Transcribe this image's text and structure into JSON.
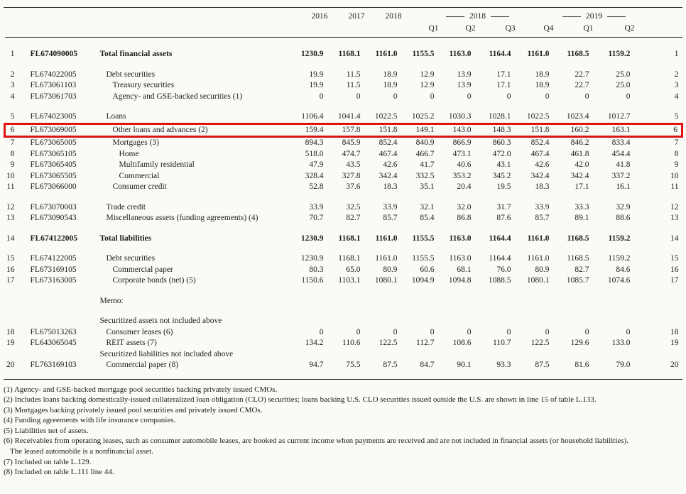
{
  "table": {
    "year_columns": [
      "2016",
      "2017",
      "2018"
    ],
    "quarter_groups": [
      {
        "label": "2018",
        "quarters": [
          "Q1",
          "Q2",
          "Q3",
          "Q4"
        ]
      },
      {
        "label": "2019",
        "quarters": [
          "Q1",
          "Q2"
        ]
      }
    ],
    "rows": [
      {
        "line": "1",
        "code": "FL674090005",
        "desc": "Total financial assets",
        "indent": 0,
        "bold": true,
        "gap": false,
        "values": [
          "1230.9",
          "1168.1",
          "1161.0",
          "1155.5",
          "1163.0",
          "1164.4",
          "1161.0",
          "1168.5",
          "1159.2"
        ]
      },
      {
        "line": "2",
        "code": "FL674022005",
        "desc": "Debt securities",
        "indent": 1,
        "gap": true,
        "values": [
          "19.9",
          "11.5",
          "18.9",
          "12.9",
          "13.9",
          "17.1",
          "18.9",
          "22.7",
          "25.0"
        ]
      },
      {
        "line": "3",
        "code": "FL673061103",
        "desc": "Treasury securities",
        "indent": 2,
        "values": [
          "19.9",
          "11.5",
          "18.9",
          "12.9",
          "13.9",
          "17.1",
          "18.9",
          "22.7",
          "25.0"
        ]
      },
      {
        "line": "4",
        "code": "FL673061703",
        "desc": "Agency- and GSE-backed securities (1)",
        "indent": 2,
        "values": [
          "0",
          "0",
          "0",
          "0",
          "0",
          "0",
          "0",
          "0",
          "0"
        ]
      },
      {
        "line": "5",
        "code": "FL674023005",
        "desc": "Loans",
        "indent": 1,
        "gap": true,
        "values": [
          "1106.4",
          "1041.4",
          "1022.5",
          "1025.2",
          "1030.3",
          "1028.1",
          "1022.5",
          "1023.4",
          "1012.7"
        ]
      },
      {
        "line": "6",
        "code": "FL673069005",
        "desc": "Other loans and advances (2)",
        "indent": 2,
        "highlight": true,
        "values": [
          "159.4",
          "157.8",
          "151.8",
          "149.1",
          "143.0",
          "148.3",
          "151.8",
          "160.2",
          "163.1"
        ]
      },
      {
        "line": "7",
        "code": "FL673065005",
        "desc": "Mortgages (3)",
        "indent": 2,
        "values": [
          "894.3",
          "845.9",
          "852.4",
          "840.9",
          "866.9",
          "860.3",
          "852.4",
          "846.2",
          "833.4"
        ]
      },
      {
        "line": "8",
        "code": "FL673065105",
        "desc": "Home",
        "indent": 3,
        "values": [
          "518.0",
          "474.7",
          "467.4",
          "466.7",
          "473.1",
          "472.0",
          "467.4",
          "461.8",
          "454.4"
        ]
      },
      {
        "line": "9",
        "code": "FL673065405",
        "desc": "Multifamily residential",
        "indent": 3,
        "values": [
          "47.9",
          "43.5",
          "42.6",
          "41.7",
          "40.6",
          "43.1",
          "42.6",
          "42.0",
          "41.8"
        ]
      },
      {
        "line": "10",
        "code": "FL673065505",
        "desc": "Commercial",
        "indent": 3,
        "values": [
          "328.4",
          "327.8",
          "342.4",
          "332.5",
          "353.2",
          "345.2",
          "342.4",
          "342.4",
          "337.2"
        ]
      },
      {
        "line": "11",
        "code": "FL673066000",
        "desc": "Consumer credit",
        "indent": 2,
        "values": [
          "52.8",
          "37.6",
          "18.3",
          "35.1",
          "20.4",
          "19.5",
          "18.3",
          "17.1",
          "16.1"
        ]
      },
      {
        "line": "12",
        "code": "FL673070003",
        "desc": "Trade credit",
        "indent": 1,
        "gap": true,
        "values": [
          "33.9",
          "32.5",
          "33.9",
          "32.1",
          "32.0",
          "31.7",
          "33.9",
          "33.3",
          "32.9"
        ]
      },
      {
        "line": "13",
        "code": "FL673090543",
        "desc": "Miscellaneous assets (funding agreements) (4)",
        "indent": 1,
        "values": [
          "70.7",
          "82.7",
          "85.7",
          "85.4",
          "86.8",
          "87.6",
          "85.7",
          "89.1",
          "88.6"
        ]
      },
      {
        "line": "14",
        "code": "FL674122005",
        "desc": "Total liabilities",
        "indent": 0,
        "bold": true,
        "gap": true,
        "values": [
          "1230.9",
          "1168.1",
          "1161.0",
          "1155.5",
          "1163.0",
          "1164.4",
          "1161.0",
          "1168.5",
          "1159.2"
        ]
      },
      {
        "line": "15",
        "code": "FL674122005",
        "desc": "Debt securities",
        "indent": 1,
        "gap": true,
        "values": [
          "1230.9",
          "1168.1",
          "1161.0",
          "1155.5",
          "1163.0",
          "1164.4",
          "1161.0",
          "1168.5",
          "1159.2"
        ]
      },
      {
        "line": "16",
        "code": "FL673169105",
        "desc": "Commercial paper",
        "indent": 2,
        "values": [
          "80.3",
          "65.0",
          "80.9",
          "60.6",
          "68.1",
          "76.0",
          "80.9",
          "82.7",
          "84.6"
        ]
      },
      {
        "line": "17",
        "code": "FL673163005",
        "desc": "Corporate bonds (net) (5)",
        "indent": 2,
        "values": [
          "1150.6",
          "1103.1",
          "1080.1",
          "1094.9",
          "1094.8",
          "1088.5",
          "1080.1",
          "1085.7",
          "1074.6"
        ]
      },
      {
        "label": true,
        "desc": "Memo:",
        "indent": 0,
        "gap": true
      },
      {
        "label": true,
        "desc": "Securitized assets not included above",
        "indent": 0,
        "gap": true
      },
      {
        "line": "18",
        "code": "FL675013263",
        "desc": "Consumer leases (6)",
        "indent": 1,
        "values": [
          "0",
          "0",
          "0",
          "0",
          "0",
          "0",
          "0",
          "0",
          "0"
        ]
      },
      {
        "line": "19",
        "code": "FL643065045",
        "desc": "REIT assets (7)",
        "indent": 1,
        "values": [
          "134.2",
          "110.6",
          "122.5",
          "112.7",
          "108.6",
          "110.7",
          "122.5",
          "129.6",
          "133.0"
        ]
      },
      {
        "label": true,
        "desc": "Securitized liabilities not included above",
        "indent": 0
      },
      {
        "line": "20",
        "code": "FL763169103",
        "desc": "Commercial paper (8)",
        "indent": 1,
        "values": [
          "94.7",
          "75.5",
          "87.5",
          "84.7",
          "90.1",
          "93.3",
          "87.5",
          "81.6",
          "79.0"
        ]
      }
    ]
  },
  "footnotes": [
    {
      "text": "(1) Agency- and GSE-backed mortgage pool securities backing privately issued CMOs.",
      "cont": false
    },
    {
      "text": "(2) Includes loans backing domestically-issued collateralized loan obligation (CLO) securities; loans backing U.S. CLO securities issued outside the U.S. are shown in line 15 of table L.133.",
      "cont": false
    },
    {
      "text": "(3) Mortgages backing privately issued pool securities and privately issued CMOs.",
      "cont": false
    },
    {
      "text": "(4) Funding agreements with life insurance companies.",
      "cont": false
    },
    {
      "text": "(5) Liabilities net of assets.",
      "cont": false
    },
    {
      "text": "(6) Receivables from operating leases, such as consumer automobile leases, are booked as current income when payments are received and are not included in financial assets (or household liabilities).",
      "cont": false
    },
    {
      "text": "The leased automobile is a nonfinancial asset.",
      "cont": true
    },
    {
      "text": "(7) Included on table L.129.",
      "cont": false
    },
    {
      "text": "(8) Included on table L.111 line 44.",
      "cont": false
    }
  ],
  "highlight_color": "#e01212"
}
